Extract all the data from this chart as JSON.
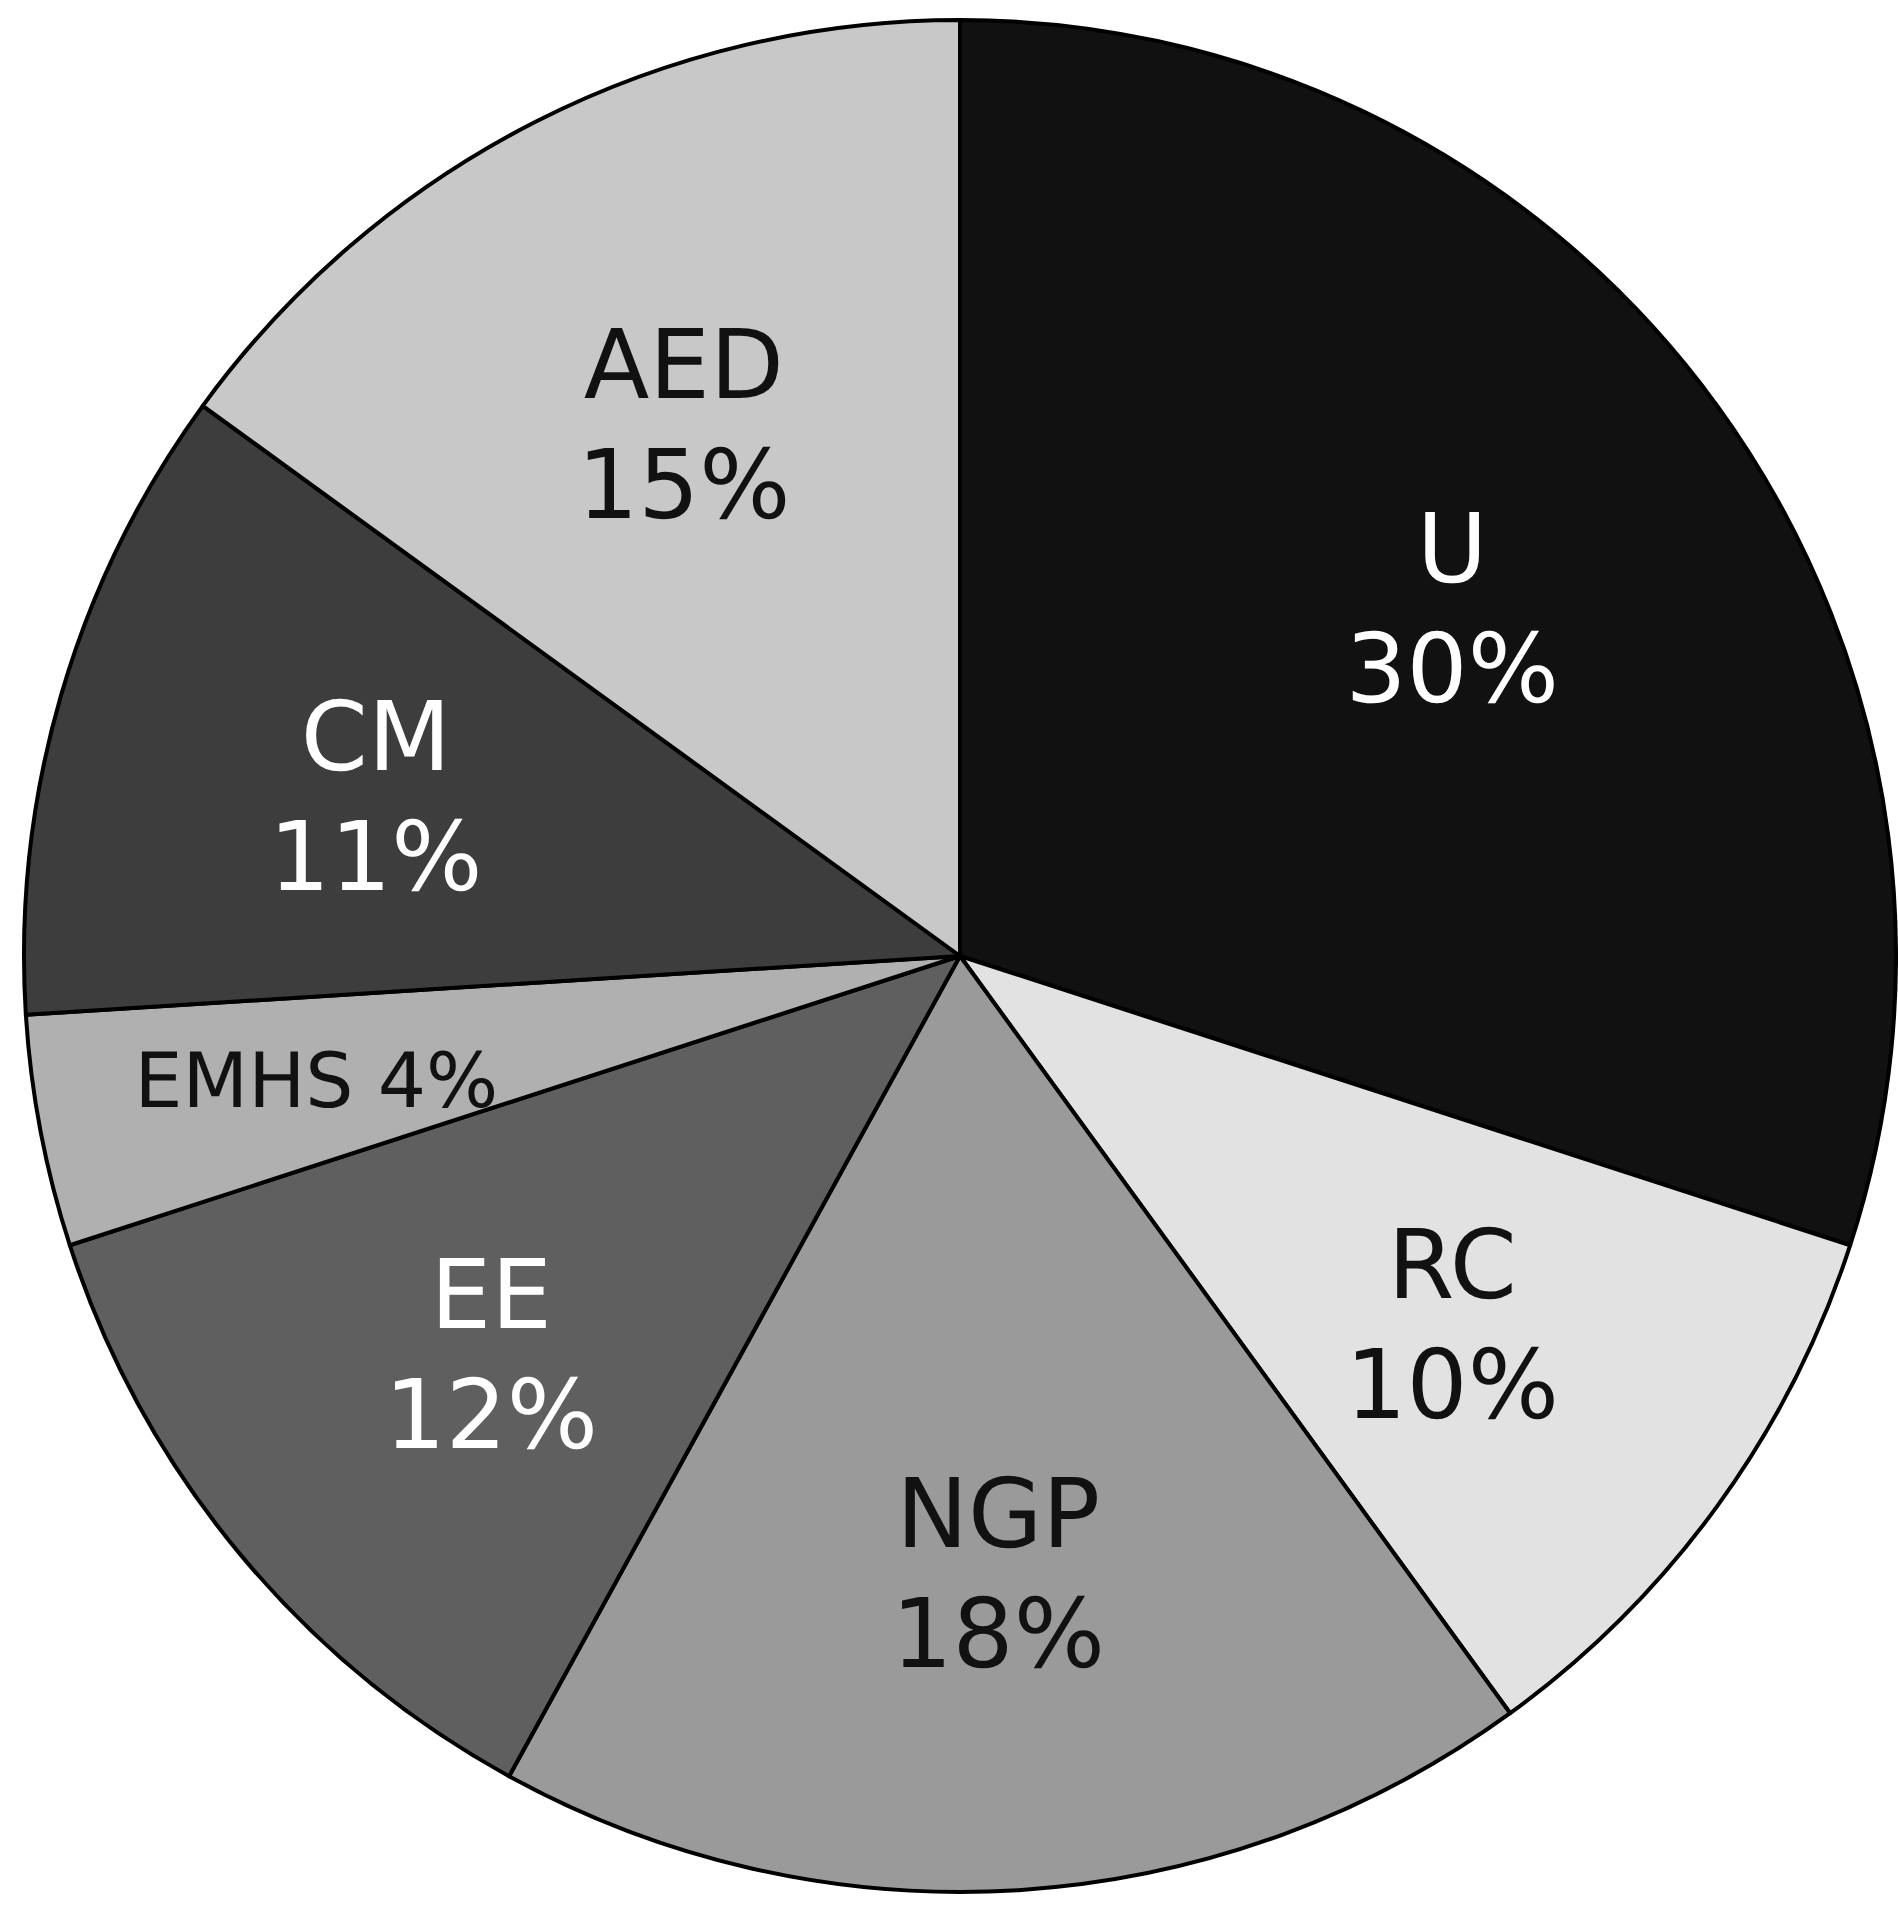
{
  "chart_data": {
    "type": "pie",
    "categories": [
      "U",
      "RC",
      "NGP",
      "EE",
      "EMHS",
      "CM",
      "AED"
    ],
    "values": [
      30,
      10,
      18,
      12,
      4,
      11,
      15
    ],
    "colors": [
      "#111111",
      "#e1e2e1",
      "#9a9a9a",
      "#5e5f5e",
      "#b0b0b0",
      "#3d3d3d",
      "#c8c8c8"
    ],
    "value_labels": [
      "30%",
      "10%",
      "18%",
      "12%",
      "4%",
      "11%",
      "15%"
    ]
  }
}
